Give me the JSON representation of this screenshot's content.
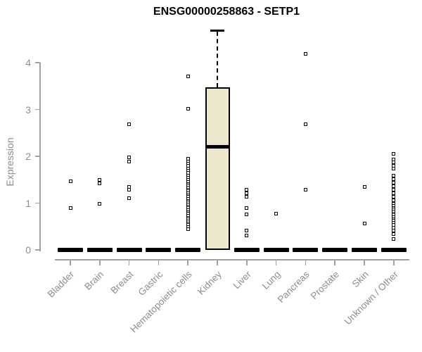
{
  "chart_data": {
    "type": "boxplot",
    "title": "ENSG00000258863 - SETP1",
    "ylabel": "Expression",
    "ylim": [
      0,
      4.8
    ],
    "yticks": [
      0,
      1,
      2,
      3,
      4
    ],
    "grid": false,
    "legend_position": "none",
    "colors": {
      "box_fill": "#ece7cd",
      "box_border": "#000000",
      "axis": "#a0a0a0",
      "tick_text": "#8e8e8e",
      "title_text": "#000000"
    },
    "categories": [
      "Bladder",
      "Brain",
      "Breast",
      "Gastric",
      "Hematopoietic cells",
      "Kidney",
      "Liver",
      "Lung",
      "Pancreas",
      "Prostate",
      "Skin",
      "Unknown / Other"
    ],
    "series": [
      {
        "category": "Bladder",
        "q1": 0,
        "median": 0,
        "q3": 0,
        "whisker_low": 0,
        "whisker_high": 0,
        "outliers": [
          1.46,
          0.9
        ]
      },
      {
        "category": "Brain",
        "q1": 0,
        "median": 0,
        "q3": 0,
        "whisker_low": 0,
        "whisker_high": 0,
        "outliers": [
          1.5,
          1.42,
          0.98
        ]
      },
      {
        "category": "Breast",
        "q1": 0,
        "median": 0,
        "q3": 0,
        "whisker_low": 0,
        "whisker_high": 0,
        "outliers": [
          2.68,
          1.97,
          1.88,
          1.35,
          1.28,
          1.1
        ]
      },
      {
        "category": "Gastric",
        "q1": 0,
        "median": 0,
        "q3": 0,
        "whisker_low": 0,
        "whisker_high": 0,
        "outliers": []
      },
      {
        "category": "Hematopoietic cells",
        "q1": 0,
        "median": 0,
        "q3": 0,
        "whisker_low": 0,
        "whisker_high": 0,
        "outliers": [
          3.7,
          3.02,
          1.95,
          1.89,
          1.84,
          1.79,
          1.74,
          1.69,
          1.64,
          1.59,
          1.54,
          1.49,
          1.45,
          1.41,
          1.37,
          1.33,
          1.29,
          1.25,
          1.21,
          1.17,
          1.13,
          1.09,
          1.05,
          1.01,
          0.97,
          0.93,
          0.89,
          0.85,
          0.81,
          0.77,
          0.73,
          0.69,
          0.65,
          0.61,
          0.57,
          0.53,
          0.49,
          0.45
        ]
      },
      {
        "category": "Kidney",
        "q1": 0,
        "median": 2.21,
        "q3": 3.48,
        "whisker_low": 0,
        "whisker_high": 4.69,
        "outliers": []
      },
      {
        "category": "Liver",
        "q1": 0,
        "median": 0,
        "q3": 0,
        "whisker_low": 0,
        "whisker_high": 0,
        "outliers": [
          1.29,
          1.21,
          1.13,
          0.89,
          0.76,
          0.42,
          0.31
        ]
      },
      {
        "category": "Lung",
        "q1": 0,
        "median": 0,
        "q3": 0,
        "whisker_low": 0,
        "whisker_high": 0,
        "outliers": [
          0.78
        ]
      },
      {
        "category": "Pancreas",
        "q1": 0,
        "median": 0,
        "q3": 0,
        "whisker_low": 0,
        "whisker_high": 0,
        "outliers": [
          4.19,
          2.69,
          1.28
        ]
      },
      {
        "category": "Prostate",
        "q1": 0,
        "median": 0,
        "q3": 0,
        "whisker_low": 0,
        "whisker_high": 0,
        "outliers": []
      },
      {
        "category": "Skin",
        "q1": 0,
        "median": 0,
        "q3": 0,
        "whisker_low": 0,
        "whisker_high": 0,
        "outliers": [
          1.34,
          0.56
        ]
      },
      {
        "category": "Unknown / Other",
        "q1": 0,
        "median": 0,
        "q3": 0,
        "whisker_low": 0,
        "whisker_high": 0,
        "outliers": [
          2.06,
          1.93,
          1.87,
          1.8,
          1.74,
          1.58,
          1.51,
          1.44,
          1.36,
          1.28,
          1.21,
          1.13,
          1.06,
          0.98,
          0.94,
          0.9,
          0.86,
          0.82,
          0.78,
          0.74,
          0.7,
          0.66,
          0.62,
          0.58,
          0.54,
          0.48,
          0.41,
          0.34,
          0.23
        ]
      }
    ]
  }
}
